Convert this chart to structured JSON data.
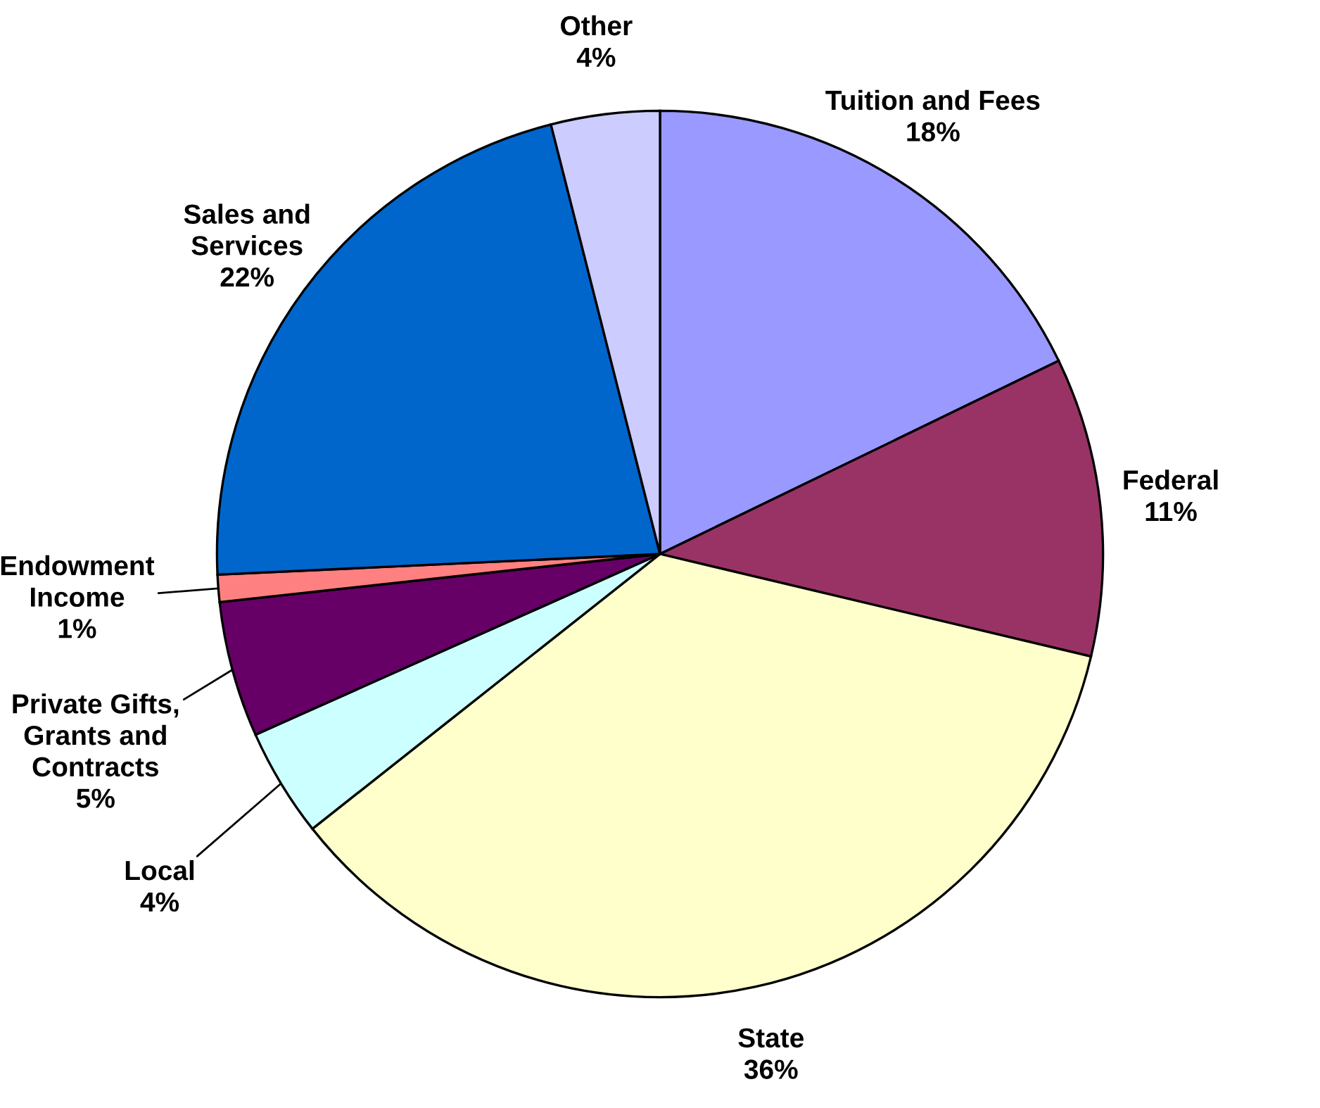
{
  "chart_data": {
    "type": "pie",
    "categories": [
      "Tuition and Fees",
      "Federal",
      "State",
      "Local",
      "Private Gifts,\nGrants and\nContracts",
      "Endowment\nIncome",
      "Sales and\nServices",
      "Other"
    ],
    "values": [
      18,
      11,
      36,
      4,
      5,
      1,
      22,
      4
    ],
    "colors": [
      "#9999ff",
      "#993366",
      "#ffffcc",
      "#ccffff",
      "#660066",
      "#ff8080",
      "#0066cc",
      "#ccccff"
    ],
    "value_labels": [
      "18%",
      "11%",
      "36%",
      "4%",
      "5%",
      "1%",
      "22%",
      "4%"
    ],
    "legend": false
  }
}
